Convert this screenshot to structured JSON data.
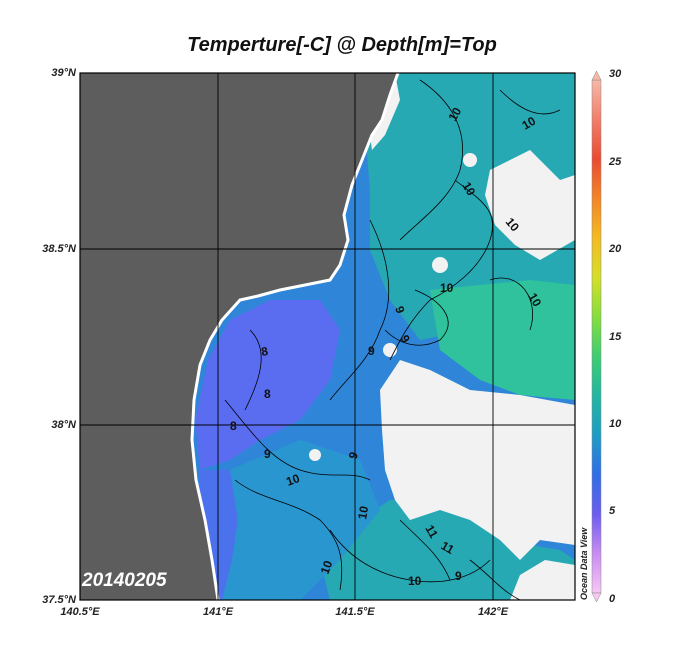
{
  "title": "Temperture[-C] @ Depth[m]=Top",
  "date_stamp": "20140205",
  "credit": "Ocean Data View",
  "lat_ticks": [
    "39°N",
    "38.5°N",
    "38°N",
    "37.5°N"
  ],
  "lon_ticks": [
    "140.5°E",
    "141°E",
    "141.5°E",
    "142°E"
  ],
  "colorbar": {
    "ticks": [
      "30",
      "25",
      "20",
      "15",
      "10",
      "5",
      "0"
    ],
    "min": 0,
    "max": 30,
    "colors": [
      "#f7c8f3",
      "#c98cf2",
      "#6b5df0",
      "#2f6ee8",
      "#1f9cc4",
      "#22b6a1",
      "#3fcd72",
      "#86de3c",
      "#d6de2a",
      "#f4bb22",
      "#f48426",
      "#ea4b32",
      "#f27e6a",
      "#f6b9a8"
    ]
  },
  "contour_labels": [
    "10",
    "10",
    "10",
    "10",
    "9",
    "9",
    "9",
    "8",
    "8",
    "9",
    "9",
    "10",
    "10",
    "10",
    "10",
    "11",
    "11",
    "10",
    "10",
    "9",
    "9",
    "8"
  ],
  "colors": {
    "land": "#5d5d5d",
    "no_data": "#f2f2f2",
    "cold": "#5a6cf0",
    "mid": "#2f86d8",
    "warm": "#27a9b4",
    "warmer": "#2fc29c",
    "warmest": "#3dcd84"
  }
}
